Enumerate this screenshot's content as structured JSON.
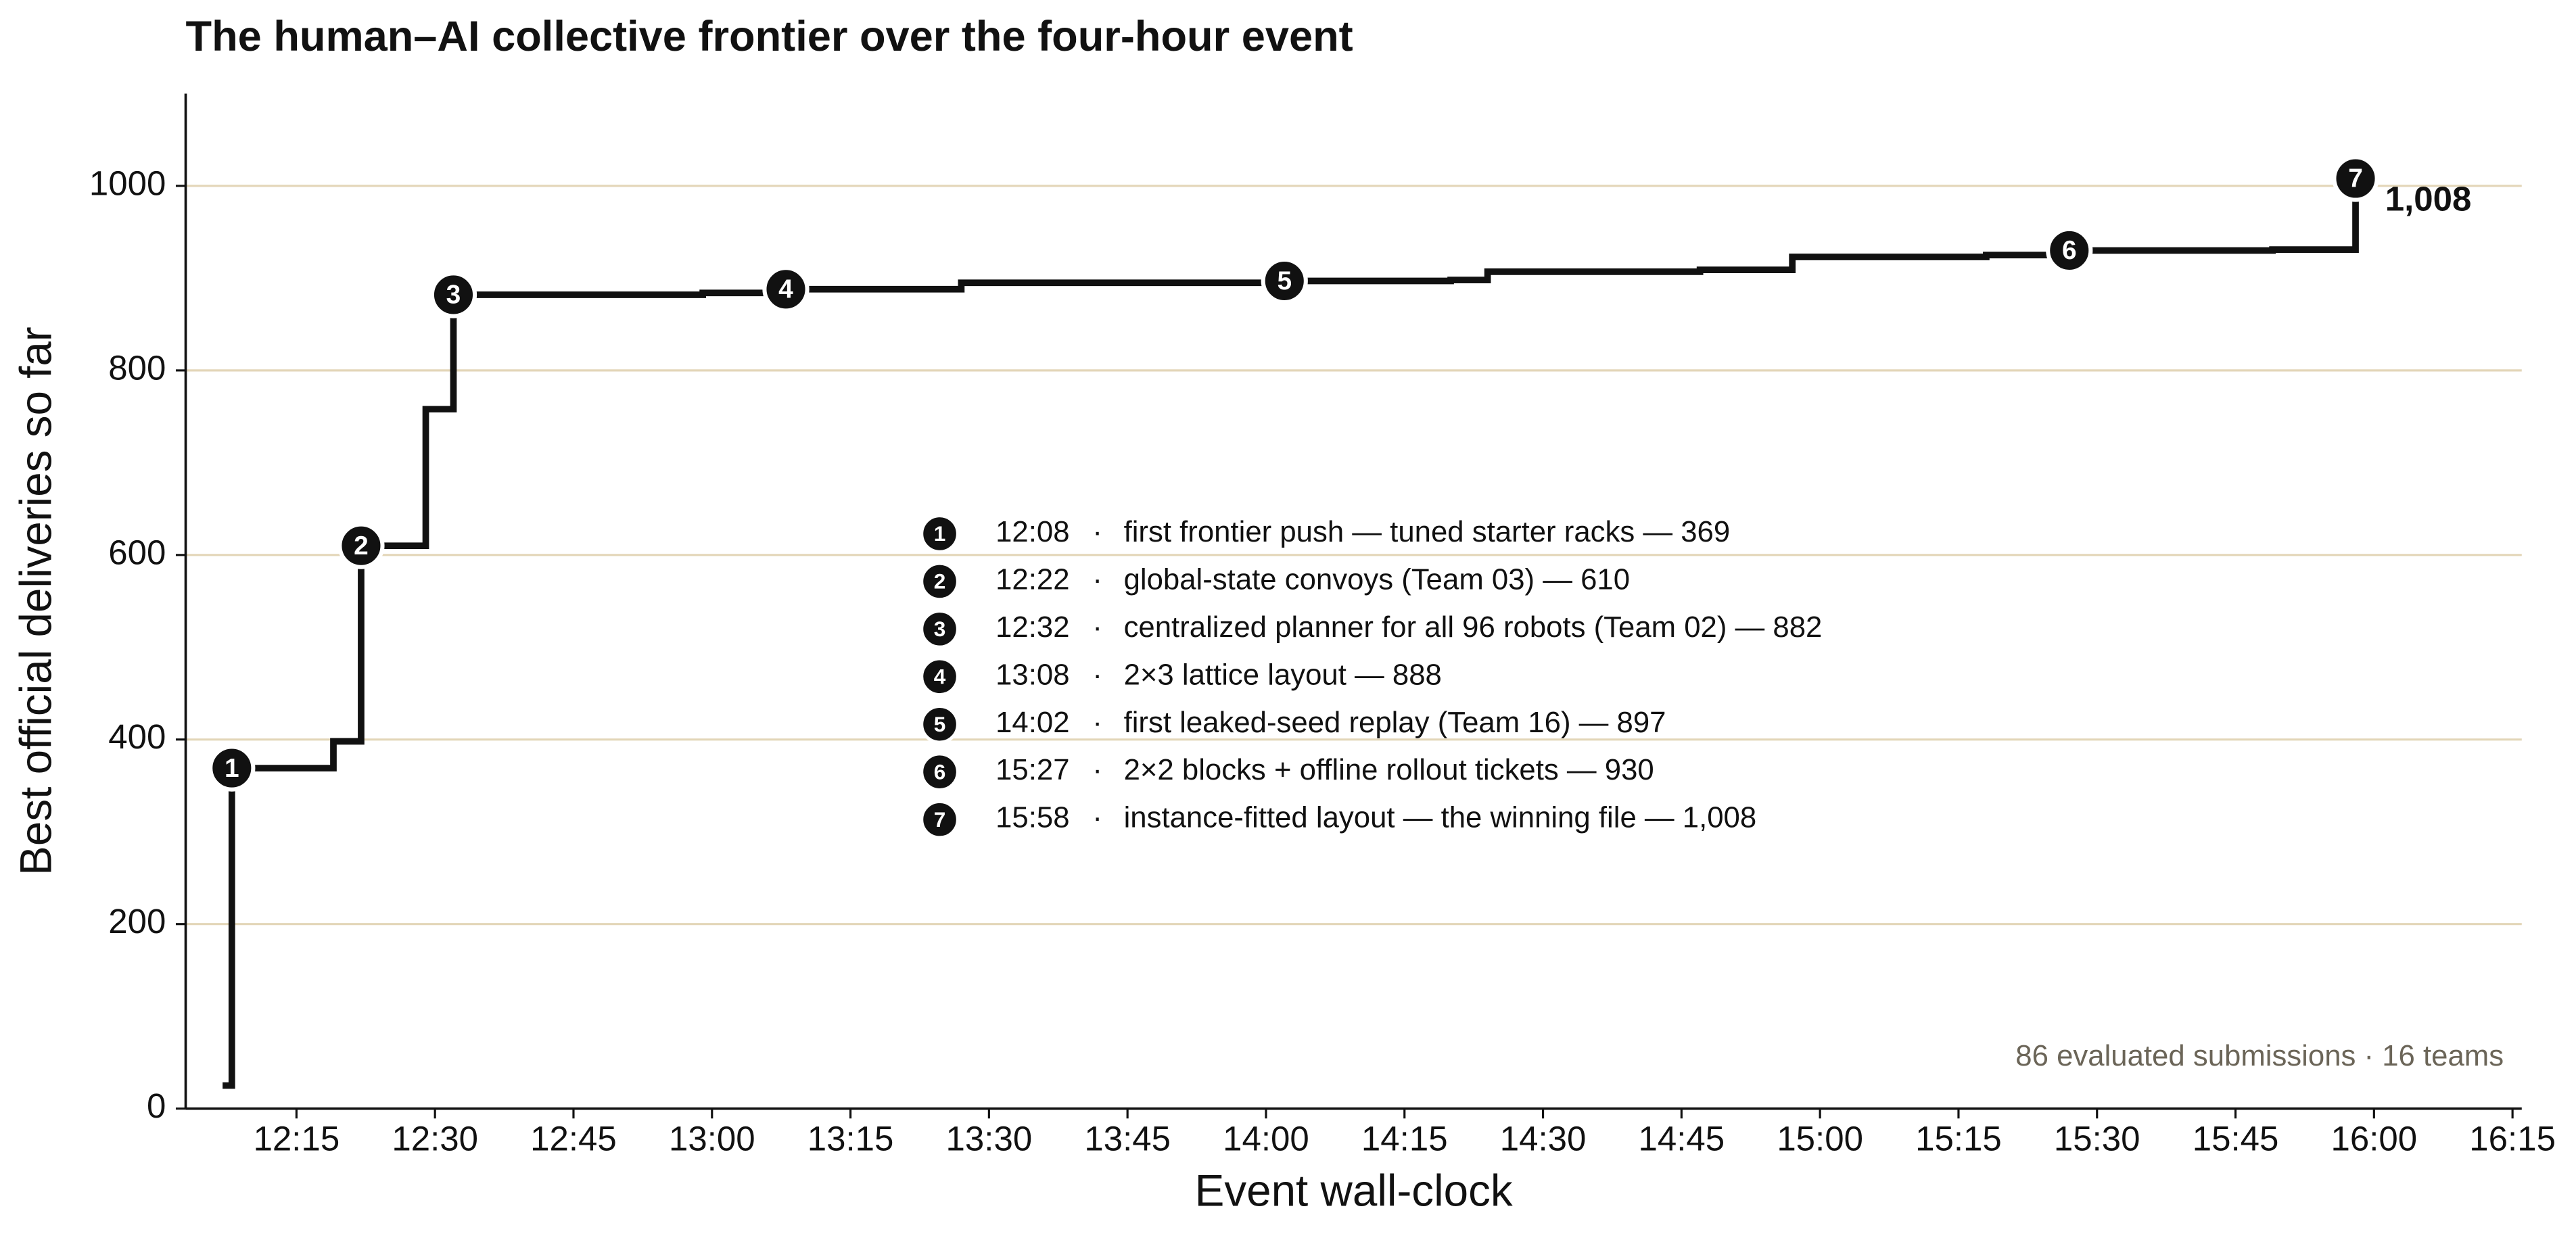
{
  "chart_data": {
    "type": "step",
    "title": "The human–AI collective frontier over the four-hour event",
    "x_label": "Event wall-clock",
    "y_label": "Best official deliveries so far",
    "x": [
      "12:07",
      "12:08",
      "12:19",
      "12:22",
      "12:29",
      "12:32",
      "12:59",
      "13:08",
      "13:27",
      "14:02",
      "14:20",
      "14:24",
      "14:47",
      "14:57",
      "15:18",
      "15:27",
      "15:49",
      "15:58"
    ],
    "series": [
      {
        "name": "Frontier",
        "color": "#111111",
        "values": [
          25,
          369,
          398,
          610,
          758,
          882,
          884,
          888,
          895,
          897,
          898,
          907,
          909,
          923,
          925,
          930,
          931,
          1008
        ]
      }
    ],
    "xlim": [
      "12:03",
      "16:16"
    ],
    "xticks": [
      "12:15",
      "12:30",
      "12:45",
      "13:00",
      "13:15",
      "13:30",
      "13:45",
      "14:00",
      "14:15",
      "14:30",
      "14:45",
      "15:00",
      "15:15",
      "15:30",
      "15:45",
      "16:00",
      "16:15"
    ],
    "ylim": [
      0,
      1100
    ],
    "yticks": [
      0,
      200,
      400,
      600,
      800,
      1000
    ],
    "grid": true,
    "grid_color": "#e3d6b8",
    "end_label": {
      "value": 1008,
      "label": "1,008"
    },
    "separator": "·",
    "markers": [
      {
        "label": "1",
        "x": "12:08",
        "y": 369,
        "text": "first frontier push — tuned starter racks — 369"
      },
      {
        "label": "2",
        "x": "12:22",
        "y": 610,
        "text": "global-state convoys (Team 03) — 610"
      },
      {
        "label": "3",
        "x": "12:32",
        "y": 882,
        "text": "centralized planner for all 96 robots (Team 02) — 882"
      },
      {
        "label": "4",
        "x": "13:08",
        "y": 888,
        "text": "2×3 lattice layout — 888"
      },
      {
        "label": "5",
        "x": "14:02",
        "y": 897,
        "text": "first leaked-seed replay (Team 16) — 897"
      },
      {
        "label": "6",
        "x": "15:27",
        "y": 930,
        "text": "2×2 blocks + offline rollout tickets — 930"
      },
      {
        "label": "7",
        "x": "15:58",
        "y": 1008,
        "text": "instance-fitted layout — the winning file — 1,008"
      }
    ],
    "note": "86 evaluated submissions  ·  16 teams"
  }
}
